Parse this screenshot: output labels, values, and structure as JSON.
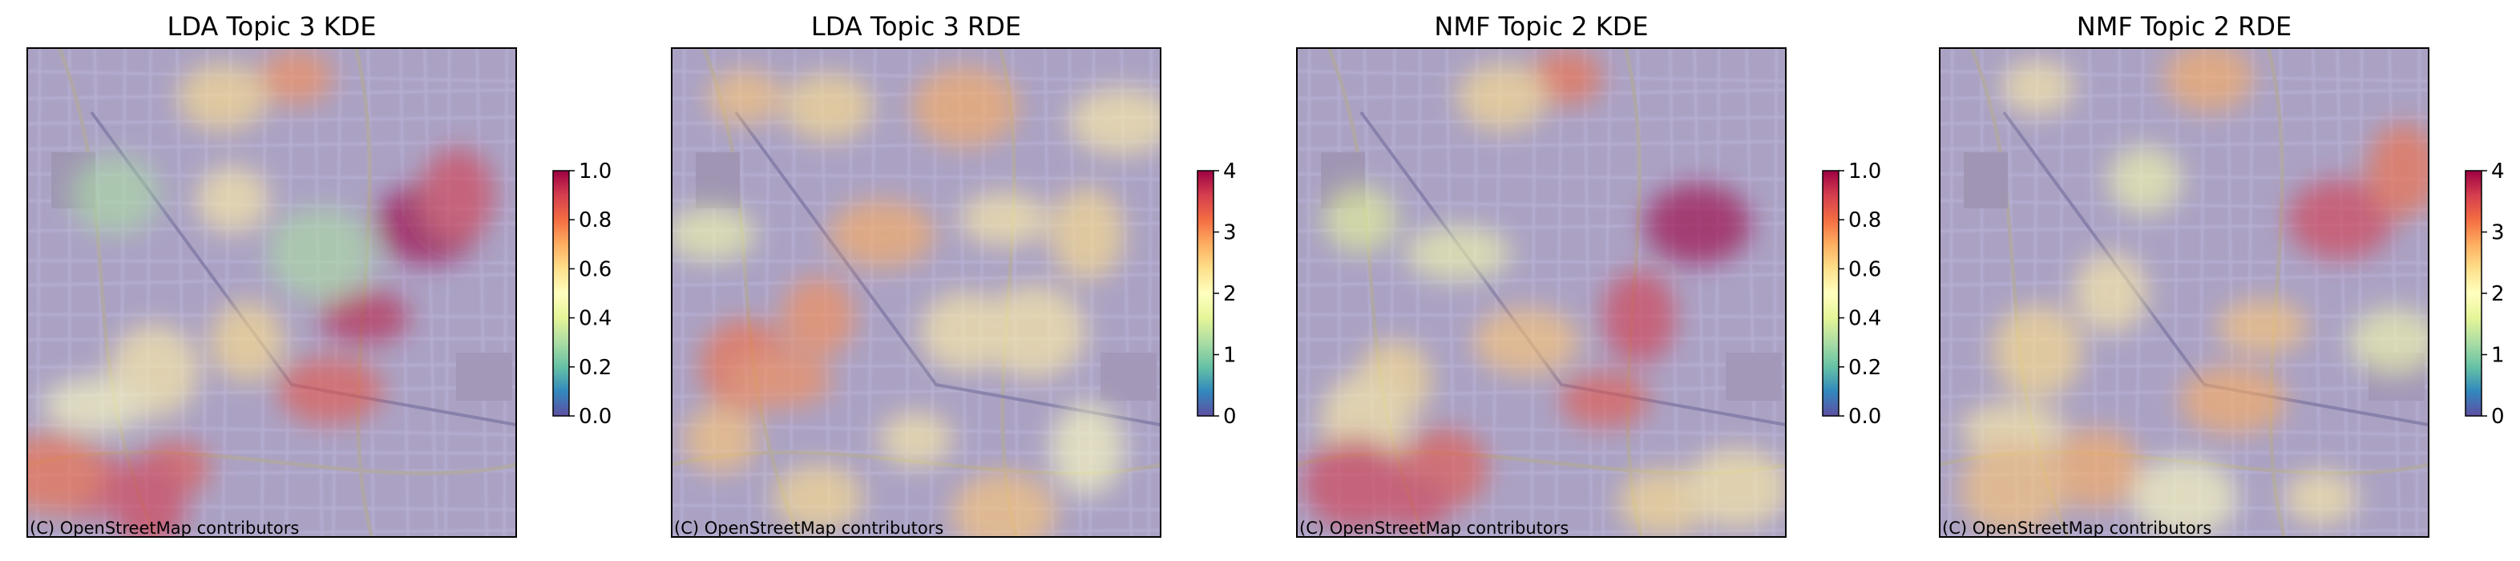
{
  "chart_data": [
    {
      "type": "heatmap",
      "title": "LDA Topic 3 KDE",
      "attribution": "(C) OpenStreetMap contributors",
      "colorbar": {
        "min": 0.0,
        "max": 1.0,
        "ticks": [
          "0.0",
          "0.2",
          "0.4",
          "0.6",
          "0.8",
          "1.0"
        ],
        "colormap": "Spectral_r"
      },
      "hotspots": [
        [
          0.55,
          0.06,
          0.75
        ],
        [
          0.4,
          0.1,
          0.6
        ],
        [
          0.82,
          0.36,
          1.0
        ],
        [
          0.88,
          0.3,
          0.9
        ],
        [
          0.69,
          0.55,
          0.95
        ],
        [
          0.62,
          0.7,
          0.85
        ],
        [
          0.45,
          0.6,
          0.6
        ],
        [
          0.26,
          0.66,
          0.55
        ],
        [
          0.14,
          0.73,
          0.5
        ],
        [
          0.42,
          0.31,
          0.55
        ],
        [
          0.18,
          0.3,
          0.3
        ],
        [
          0.6,
          0.42,
          0.3
        ],
        [
          0.3,
          0.86,
          0.85
        ],
        [
          0.12,
          0.89,
          0.9
        ],
        [
          0.05,
          0.87,
          0.8
        ],
        [
          0.25,
          0.93,
          0.9
        ]
      ]
    },
    {
      "type": "heatmap",
      "title": "LDA Topic 3 RDE",
      "attribution": "(C) OpenStreetMap contributors",
      "colorbar": {
        "min": 0,
        "max": 4,
        "ticks": [
          "0",
          "1",
          "2",
          "3",
          "4"
        ],
        "colormap": "Spectral_r"
      },
      "hotspots": [
        [
          0.15,
          0.1,
          0.65
        ],
        [
          0.32,
          0.12,
          0.6
        ],
        [
          0.6,
          0.12,
          0.7
        ],
        [
          0.85,
          0.38,
          0.6
        ],
        [
          0.68,
          0.35,
          0.55
        ],
        [
          0.43,
          0.38,
          0.7
        ],
        [
          0.3,
          0.55,
          0.75
        ],
        [
          0.15,
          0.65,
          0.8
        ],
        [
          0.22,
          0.68,
          0.75
        ],
        [
          0.1,
          0.8,
          0.65
        ],
        [
          0.6,
          0.58,
          0.55
        ],
        [
          0.74,
          0.58,
          0.55
        ],
        [
          0.5,
          0.8,
          0.55
        ],
        [
          0.3,
          0.92,
          0.6
        ],
        [
          0.68,
          0.95,
          0.65
        ],
        [
          0.85,
          0.82,
          0.5
        ],
        [
          0.08,
          0.38,
          0.45
        ],
        [
          0.92,
          0.15,
          0.55
        ]
      ]
    },
    {
      "type": "heatmap",
      "title": "NMF Topic 2 KDE",
      "attribution": "(C) OpenStreetMap contributors",
      "colorbar": {
        "min": 0.0,
        "max": 1.0,
        "ticks": [
          "0.0",
          "0.2",
          "0.4",
          "0.6",
          "0.8",
          "1.0"
        ],
        "colormap": "Spectral_r"
      },
      "hotspots": [
        [
          0.55,
          0.06,
          0.8
        ],
        [
          0.42,
          0.1,
          0.6
        ],
        [
          0.82,
          0.36,
          1.0
        ],
        [
          0.7,
          0.55,
          0.9
        ],
        [
          0.63,
          0.72,
          0.85
        ],
        [
          0.47,
          0.6,
          0.65
        ],
        [
          0.2,
          0.68,
          0.6
        ],
        [
          0.14,
          0.76,
          0.55
        ],
        [
          0.33,
          0.42,
          0.45
        ],
        [
          0.13,
          0.35,
          0.4
        ],
        [
          0.3,
          0.86,
          0.85
        ],
        [
          0.12,
          0.89,
          0.9
        ],
        [
          0.24,
          0.93,
          0.9
        ],
        [
          0.75,
          0.93,
          0.6
        ],
        [
          0.9,
          0.9,
          0.55
        ]
      ]
    },
    {
      "type": "heatmap",
      "title": "NMF Topic 2 RDE",
      "attribution": "(C) OpenStreetMap contributors",
      "colorbar": {
        "min": 0,
        "max": 4,
        "ticks": [
          "0",
          "1",
          "2",
          "3",
          "4"
        ],
        "colormap": "Spectral_r"
      },
      "hotspots": [
        [
          0.2,
          0.08,
          0.55
        ],
        [
          0.55,
          0.06,
          0.7
        ],
        [
          0.82,
          0.35,
          0.9
        ],
        [
          0.95,
          0.25,
          0.8
        ],
        [
          0.66,
          0.57,
          0.65
        ],
        [
          0.6,
          0.72,
          0.7
        ],
        [
          0.35,
          0.5,
          0.55
        ],
        [
          0.2,
          0.62,
          0.6
        ],
        [
          0.15,
          0.78,
          0.55
        ],
        [
          0.42,
          0.27,
          0.45
        ],
        [
          0.32,
          0.86,
          0.7
        ],
        [
          0.15,
          0.9,
          0.65
        ],
        [
          0.78,
          0.92,
          0.55
        ],
        [
          0.93,
          0.6,
          0.45
        ],
        [
          0.5,
          0.92,
          0.5
        ]
      ]
    }
  ]
}
